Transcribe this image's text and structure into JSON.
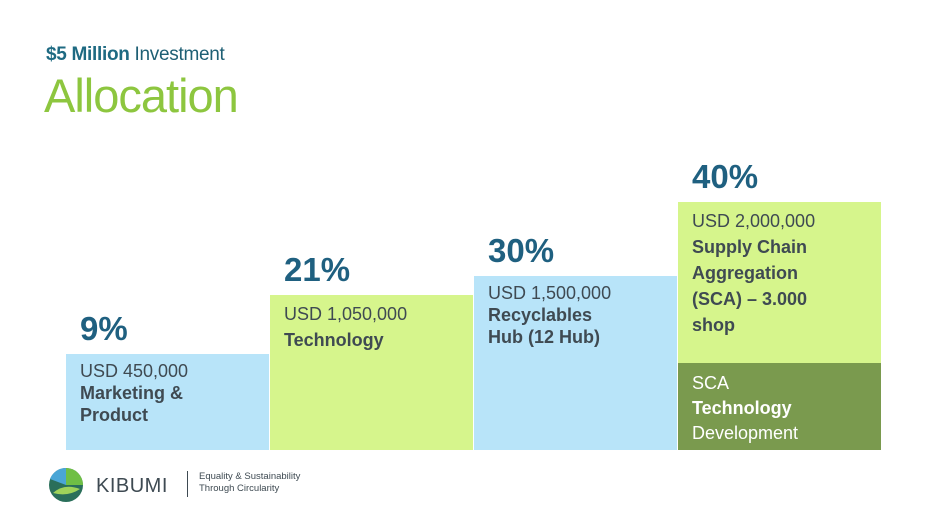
{
  "header": {
    "subtitle_strong": "$5 Million",
    "subtitle_rest": " Investment",
    "title": "Allocation"
  },
  "chart_data": {
    "type": "bar",
    "title": "Allocation",
    "categories": [
      "Marketing & Product",
      "Technology",
      "Recyclables Hub (12 Hub)",
      "Supply Chain Aggregation (SCA) – 3.000 shop"
    ],
    "values": [
      9,
      21,
      30,
      40
    ],
    "unit": "%",
    "amounts": [
      450000,
      1050000,
      1500000,
      2000000
    ],
    "items": [
      {
        "percent": "9%",
        "amount": "USD 450,000",
        "label_lines": [
          "Marketing &",
          "Product"
        ],
        "color": "#b8e4f9"
      },
      {
        "percent": "21%",
        "amount": "USD 1,050,000",
        "label_lines": [
          "Technology"
        ],
        "color": "#d6f58c"
      },
      {
        "percent": "30%",
        "amount": "USD 1,500,000",
        "label_lines": [
          "Recyclables",
          "Hub (12 Hub)"
        ],
        "color": "#b8e4f9"
      },
      {
        "percent": "40%",
        "amount": "USD 2,000,000",
        "label_lines": [
          "Supply Chain",
          "Aggregation",
          "(SCA) – 3.000",
          "shop"
        ],
        "color": "#d6f58c"
      }
    ],
    "sub_segment": {
      "line1": "SCA",
      "line2": "Technology",
      "line3": "Development",
      "color": "#7a9a4e"
    }
  },
  "footer": {
    "brand": "KIBUMI",
    "tagline_line1": "Equality & Sustainability",
    "tagline_line2": "Through Circularity"
  }
}
